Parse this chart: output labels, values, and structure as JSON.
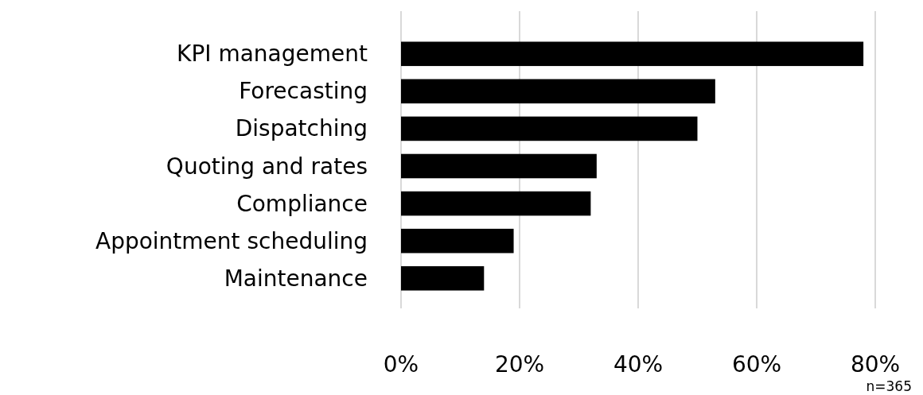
{
  "chart_data": {
    "type": "bar",
    "orientation": "horizontal",
    "categories": [
      "KPI management",
      "Forecasting",
      "Dispatching",
      "Quoting and rates",
      "Compliance",
      "Appointment scheduling",
      "Maintenance"
    ],
    "values": [
      78,
      53,
      50,
      33,
      32,
      19,
      14
    ],
    "color": "#000000",
    "xlim": [
      0,
      80
    ],
    "xticks": [
      {
        "value": 0,
        "label": "0%"
      },
      {
        "value": 20,
        "label": "20%"
      },
      {
        "value": 40,
        "label": "40%"
      },
      {
        "value": 60,
        "label": "60%"
      },
      {
        "value": 80,
        "label": "80%"
      }
    ],
    "grid": "x",
    "annotations": [
      "n=365"
    ]
  }
}
